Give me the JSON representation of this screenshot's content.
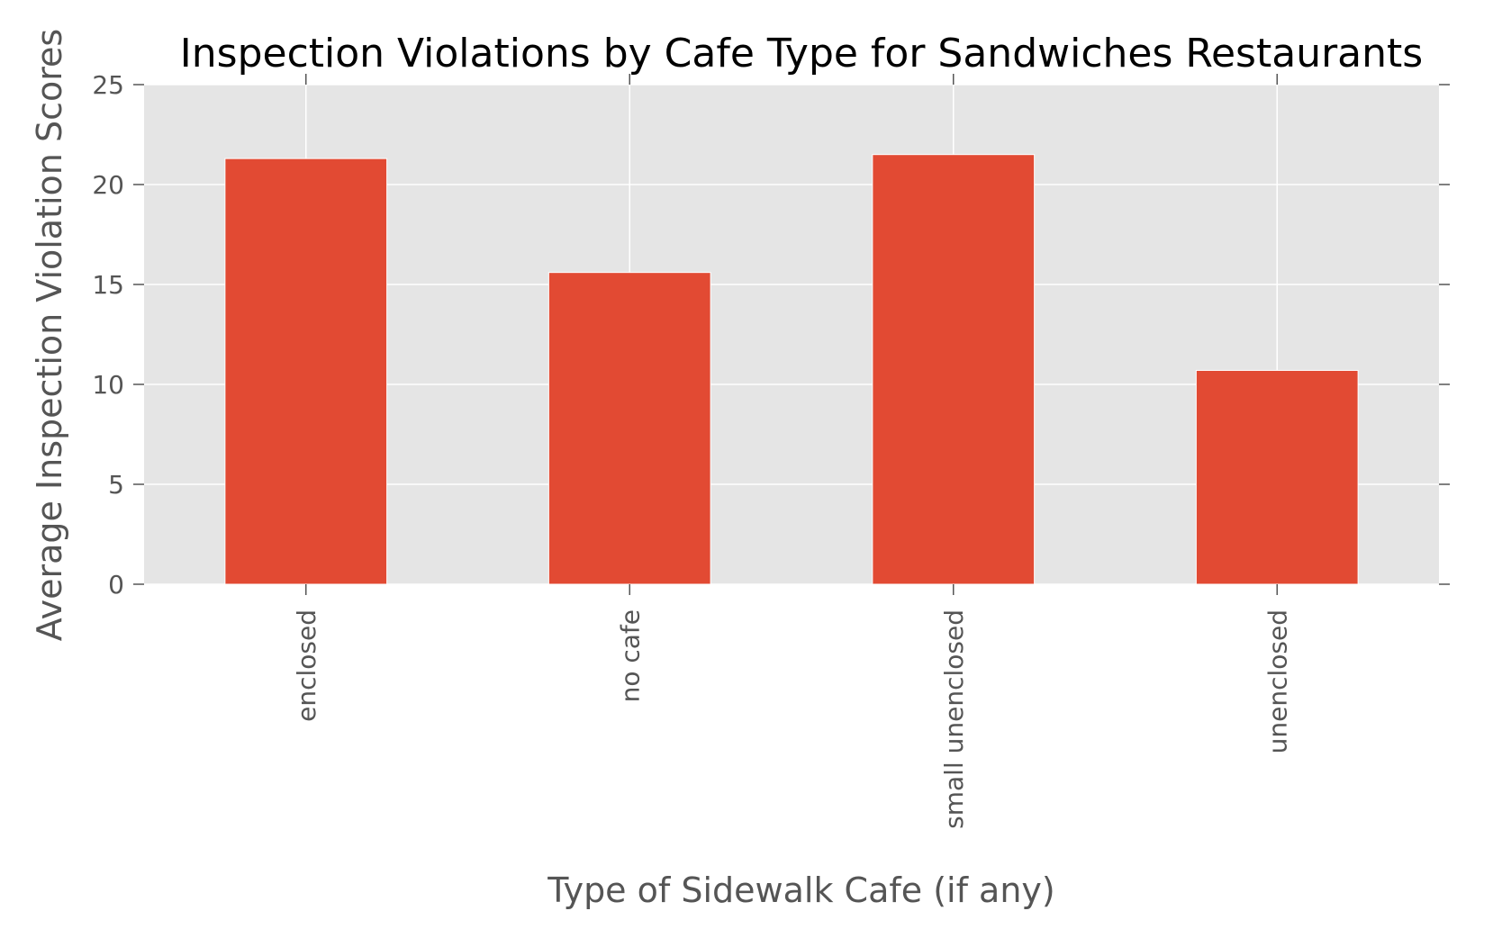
{
  "chart_data": {
    "type": "bar",
    "title": "Inspection Violations by Cafe Type for Sandwiches Restaurants",
    "xlabel": "Type of Sidewalk Cafe (if any)",
    "ylabel": "Average Inspection Violation Scores",
    "categories": [
      "enclosed",
      "no cafe",
      "small unenclosed",
      "unenclosed"
    ],
    "values": [
      21.3,
      15.6,
      21.5,
      10.7
    ],
    "ylim": [
      0,
      25
    ],
    "yticks": [
      "0",
      "5",
      "10",
      "15",
      "20",
      "25"
    ],
    "grid": true,
    "legend": "none",
    "colors": {
      "bar": "#E24A33",
      "plot_background": "#E5E5E5",
      "grid": "#FFFFFF",
      "text": "#555555"
    }
  }
}
